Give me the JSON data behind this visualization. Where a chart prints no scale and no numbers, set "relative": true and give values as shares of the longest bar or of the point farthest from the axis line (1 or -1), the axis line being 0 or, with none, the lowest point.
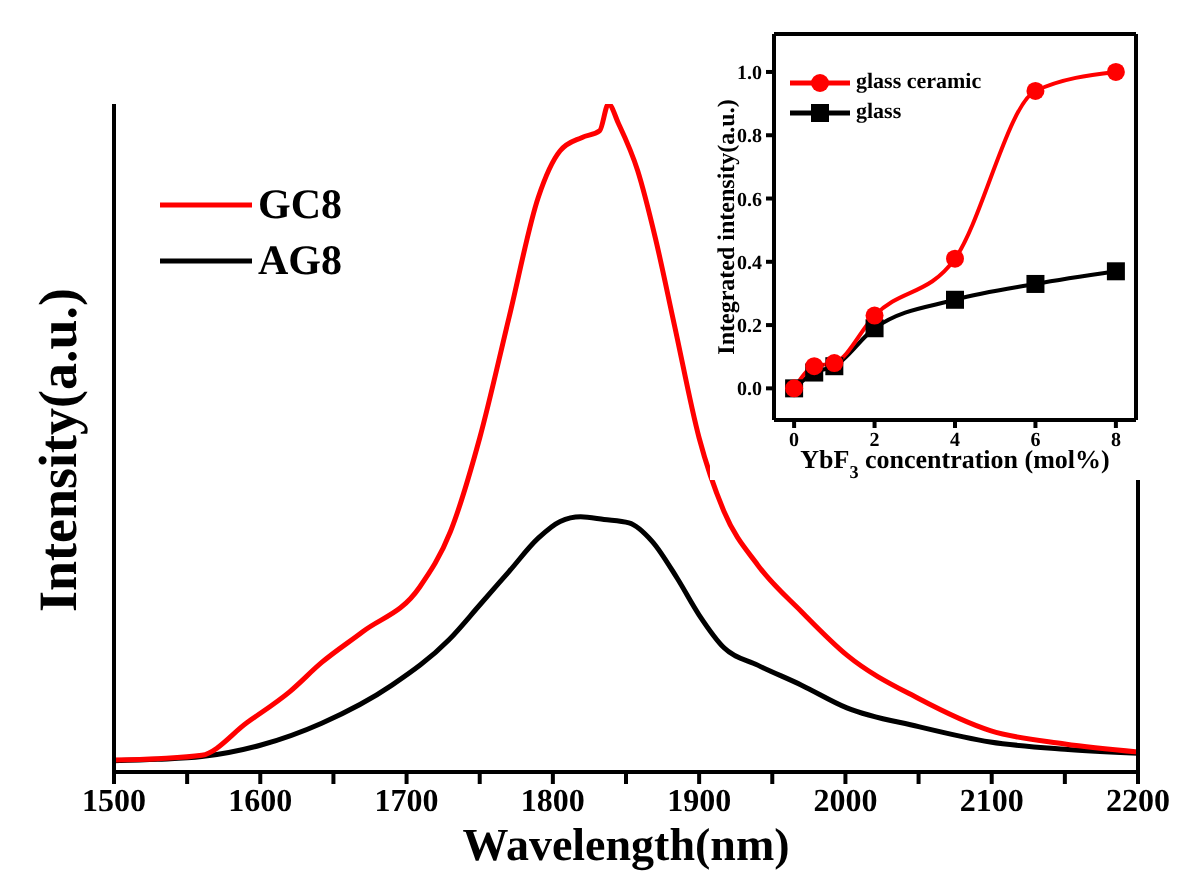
{
  "chart_data": [
    {
      "type": "line",
      "relative": true,
      "xlabel": "Wavelength(nm)",
      "ylabel": "Intensity(a.u.)",
      "xlim": [
        1500,
        2200
      ],
      "xticks": [
        1500,
        {
          "value": 1550,
          "label": null
        },
        1600,
        {
          "value": 1650,
          "label": null
        },
        1700,
        {
          "value": 1750,
          "label": null
        },
        1800,
        {
          "value": 1850,
          "label": null
        },
        1900,
        {
          "value": 1950,
          "label": null
        },
        2000,
        {
          "value": 2050,
          "label": null
        },
        2100,
        {
          "value": 2150,
          "label": null
        },
        2200
      ],
      "legend": "top left",
      "line_style": "solid",
      "series": [
        {
          "name": "GC8",
          "color": "#ff0000",
          "x": [
            1500,
            1530,
            1560,
            1591,
            1620,
            1642,
            1670,
            1709,
            1730,
            1750,
            1770,
            1790,
            1805,
            1820,
            1832,
            1838,
            1845,
            1858,
            1870,
            1883,
            1900,
            1917,
            1940,
            1970,
            2001,
            2050,
            2099,
            2150,
            2200
          ],
          "values": [
            0.018,
            0.02,
            0.025,
            0.074,
            0.12,
            0.164,
            0.21,
            0.277,
            0.36,
            0.5,
            0.68,
            0.86,
            0.93,
            0.95,
            0.96,
            1,
            0.97,
            0.9,
            0.8,
            0.67,
            0.5,
            0.39,
            0.31,
            0.24,
            0.175,
            0.11,
            0.062,
            0.042,
            0.03
          ]
        },
        {
          "name": "AG8",
          "color": "#000000",
          "x": [
            1500,
            1530,
            1560,
            1600,
            1642,
            1690,
            1729,
            1750,
            1770,
            1790,
            1805,
            1819,
            1835,
            1852,
            1868,
            1885,
            1900,
            1917,
            1940,
            1970,
            2001,
            2050,
            2099,
            2150,
            2200
          ],
          "values": [
            0.017,
            0.019,
            0.023,
            0.04,
            0.073,
            0.13,
            0.198,
            0.25,
            0.3,
            0.35,
            0.375,
            0.382,
            0.378,
            0.373,
            0.345,
            0.29,
            0.235,
            0.186,
            0.16,
            0.13,
            0.096,
            0.068,
            0.045,
            0.034,
            0.028
          ]
        }
      ]
    },
    {
      "type": "line",
      "xlabel": "YbF$_{3}$ concentration (mol%)",
      "ylabel": "Integrated intensity(a.u.)",
      "x": [
        0,
        0.5,
        1,
        2,
        4,
        6,
        8
      ],
      "xlim": [
        -0.5,
        8.5
      ],
      "xticks": [
        0,
        2,
        4,
        6,
        8
      ],
      "ylim": [
        -0.1,
        1.12
      ],
      "yticks": [
        {
          "value": 0,
          "label": "0.0"
        },
        0.2,
        0.4,
        0.6,
        0.8,
        {
          "value": 1,
          "label": "1.0"
        }
      ],
      "legend": "top left",
      "line_style": "solid",
      "series": [
        {
          "name": "glass ceramic",
          "color": "#ff0000",
          "marker": "circle",
          "values": [
            0,
            0.07,
            0.08,
            0.23,
            0.41,
            0.94,
            1.0
          ]
        },
        {
          "name": "glass",
          "color": "#000000",
          "marker": "square",
          "values": [
            0,
            0.05,
            0.07,
            0.19,
            0.28,
            0.33,
            0.37
          ]
        }
      ]
    }
  ]
}
